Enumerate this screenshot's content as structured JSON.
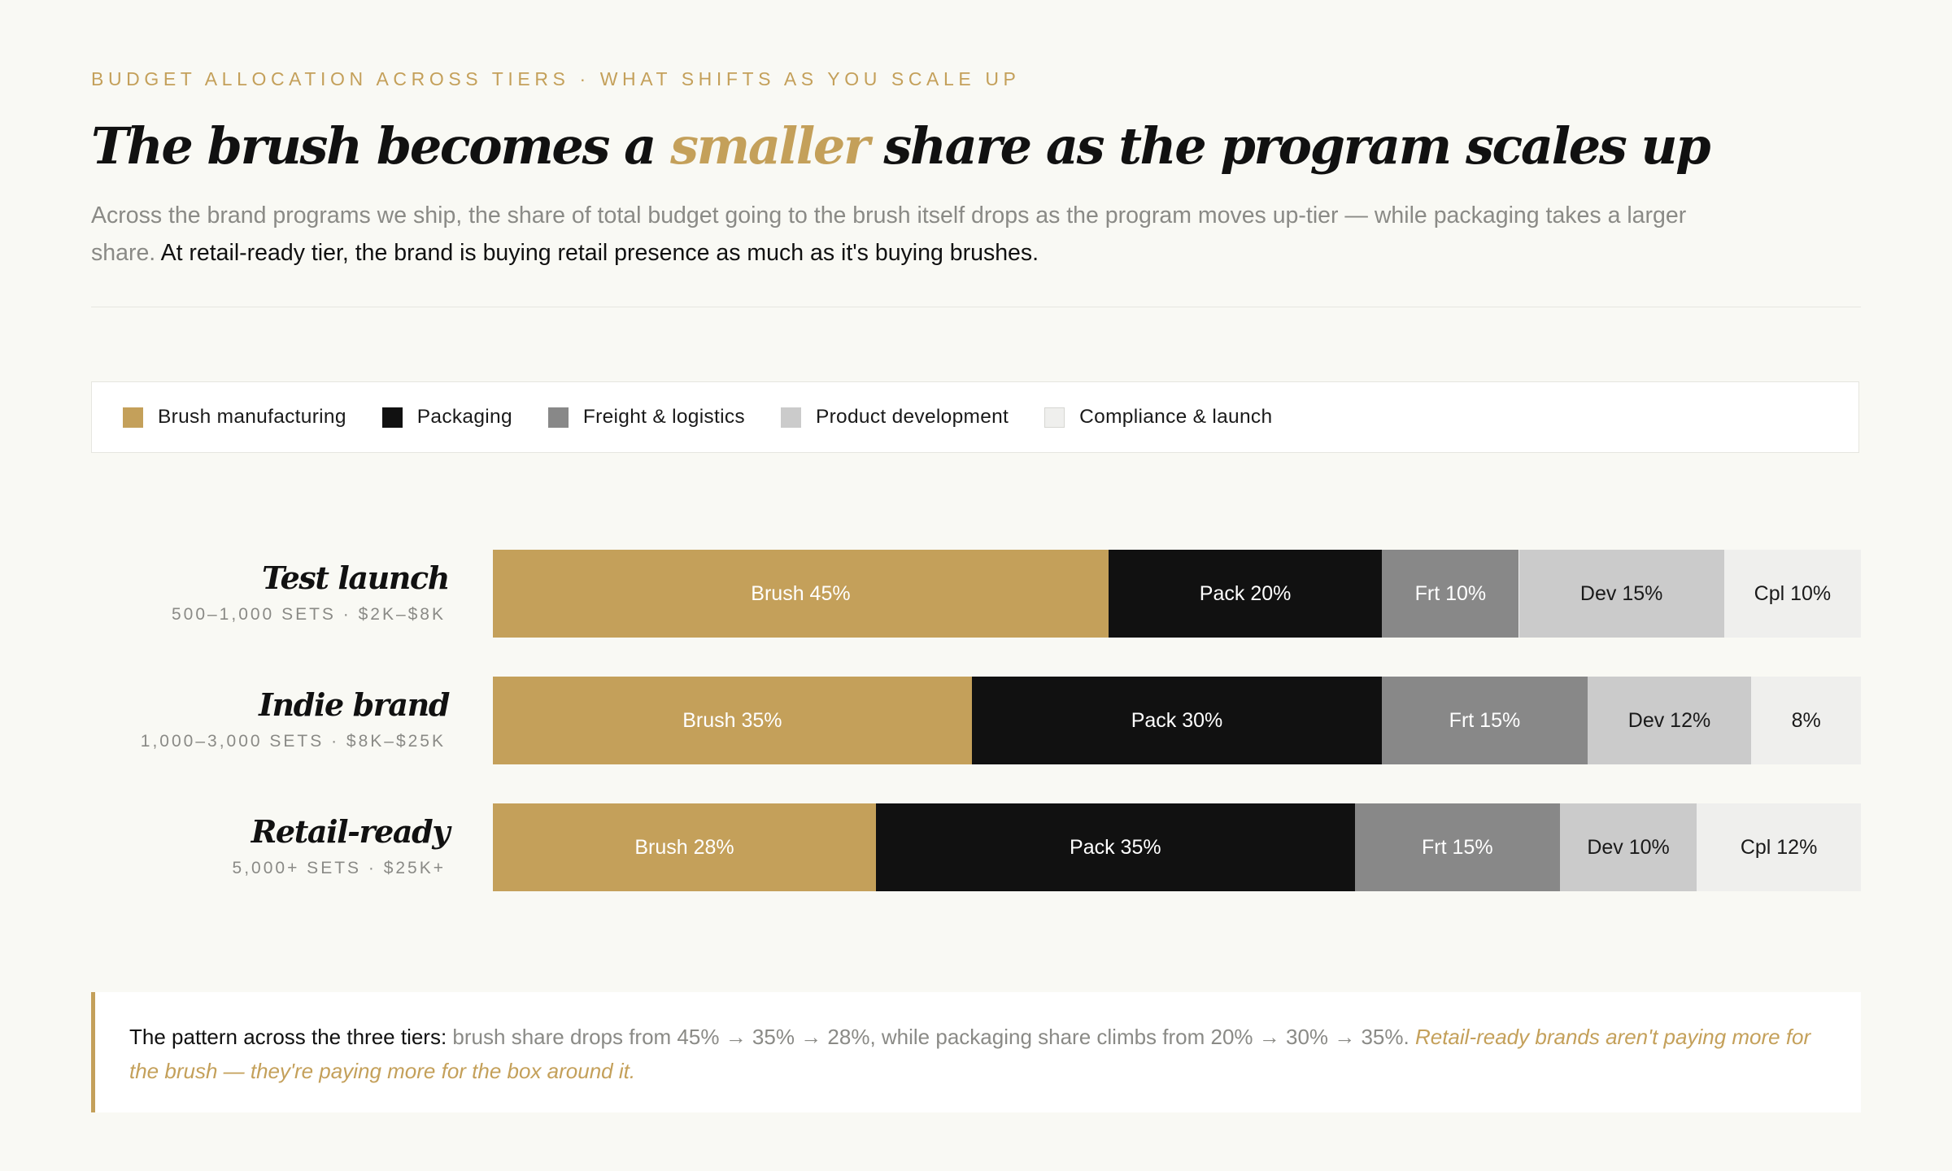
{
  "header": {
    "eyebrow": "Budget allocation across tiers · what shifts as you scale up",
    "title_before": "The brush becomes a ",
    "title_accent": "smaller",
    "title_after": " share as the program scales up",
    "lede_muted": "Across the brand programs we ship, the share of total budget going to the brush itself drops as the program moves up-tier — while packaging takes a larger share.",
    "lede_strong": " At retail-ready tier, the brand is buying retail presence as much as it's buying brushes."
  },
  "colors": {
    "accent": "#c4a05a",
    "brush": "#c4a05a",
    "packaging": "#111111",
    "freight": "#888888",
    "development": "#cbcbcb",
    "compliance": "#efefed"
  },
  "legend": [
    {
      "label": "Brush manufacturing",
      "color": "#c4a05a"
    },
    {
      "label": "Packaging",
      "color": "#111111"
    },
    {
      "label": "Freight & logistics",
      "color": "#888888"
    },
    {
      "label": "Product development",
      "color": "#cbcbcb"
    },
    {
      "label": "Compliance & launch",
      "color": "#efefed"
    }
  ],
  "chart_data": {
    "type": "bar",
    "orientation": "horizontal",
    "stacked": true,
    "categories": [
      "Test launch",
      "Indie brand",
      "Retail-ready"
    ],
    "category_subtitles": [
      "500–1,000 sets · $2K–$8K",
      "1,000–3,000 sets · $8K–$25K",
      "5,000+ sets · $25K+"
    ],
    "series": [
      {
        "name": "Brush manufacturing",
        "color": "#c4a05a",
        "text_color": "#ffffff",
        "values": [
          45,
          35,
          28
        ],
        "labels": [
          "Brush 45%",
          "Brush 35%",
          "Brush 28%"
        ]
      },
      {
        "name": "Packaging",
        "color": "#111111",
        "text_color": "#ffffff",
        "values": [
          20,
          30,
          35
        ],
        "labels": [
          "Pack 20%",
          "Pack 30%",
          "Pack 35%"
        ]
      },
      {
        "name": "Freight & logistics",
        "color": "#888888",
        "text_color": "#ffffff",
        "values": [
          10,
          15,
          15
        ],
        "labels": [
          "Frt 10%",
          "Frt 15%",
          "Frt 15%"
        ]
      },
      {
        "name": "Product development",
        "color": "#cbcbcb",
        "text_color": "#1a1a1a",
        "values": [
          15,
          12,
          10
        ],
        "labels": [
          "Dev 15%",
          "Dev 12%",
          "Dev 10%"
        ]
      },
      {
        "name": "Compliance & launch",
        "color": "#efefed",
        "text_color": "#1a1a1a",
        "values": [
          10,
          8,
          12
        ],
        "labels": [
          "Cpl 10%",
          "8%",
          "Cpl 12%"
        ]
      }
    ],
    "xlim": [
      0,
      100
    ],
    "legend_position": "top",
    "grid": false
  },
  "callout": {
    "lead": "The pattern across the three tiers:",
    "body": " brush share drops from 45% → 35% → 28%, while packaging share climbs from 20% → 30% → 35%.",
    "emphasis": " Retail-ready brands aren't paying more for the brush — they're paying more for the box around it."
  }
}
